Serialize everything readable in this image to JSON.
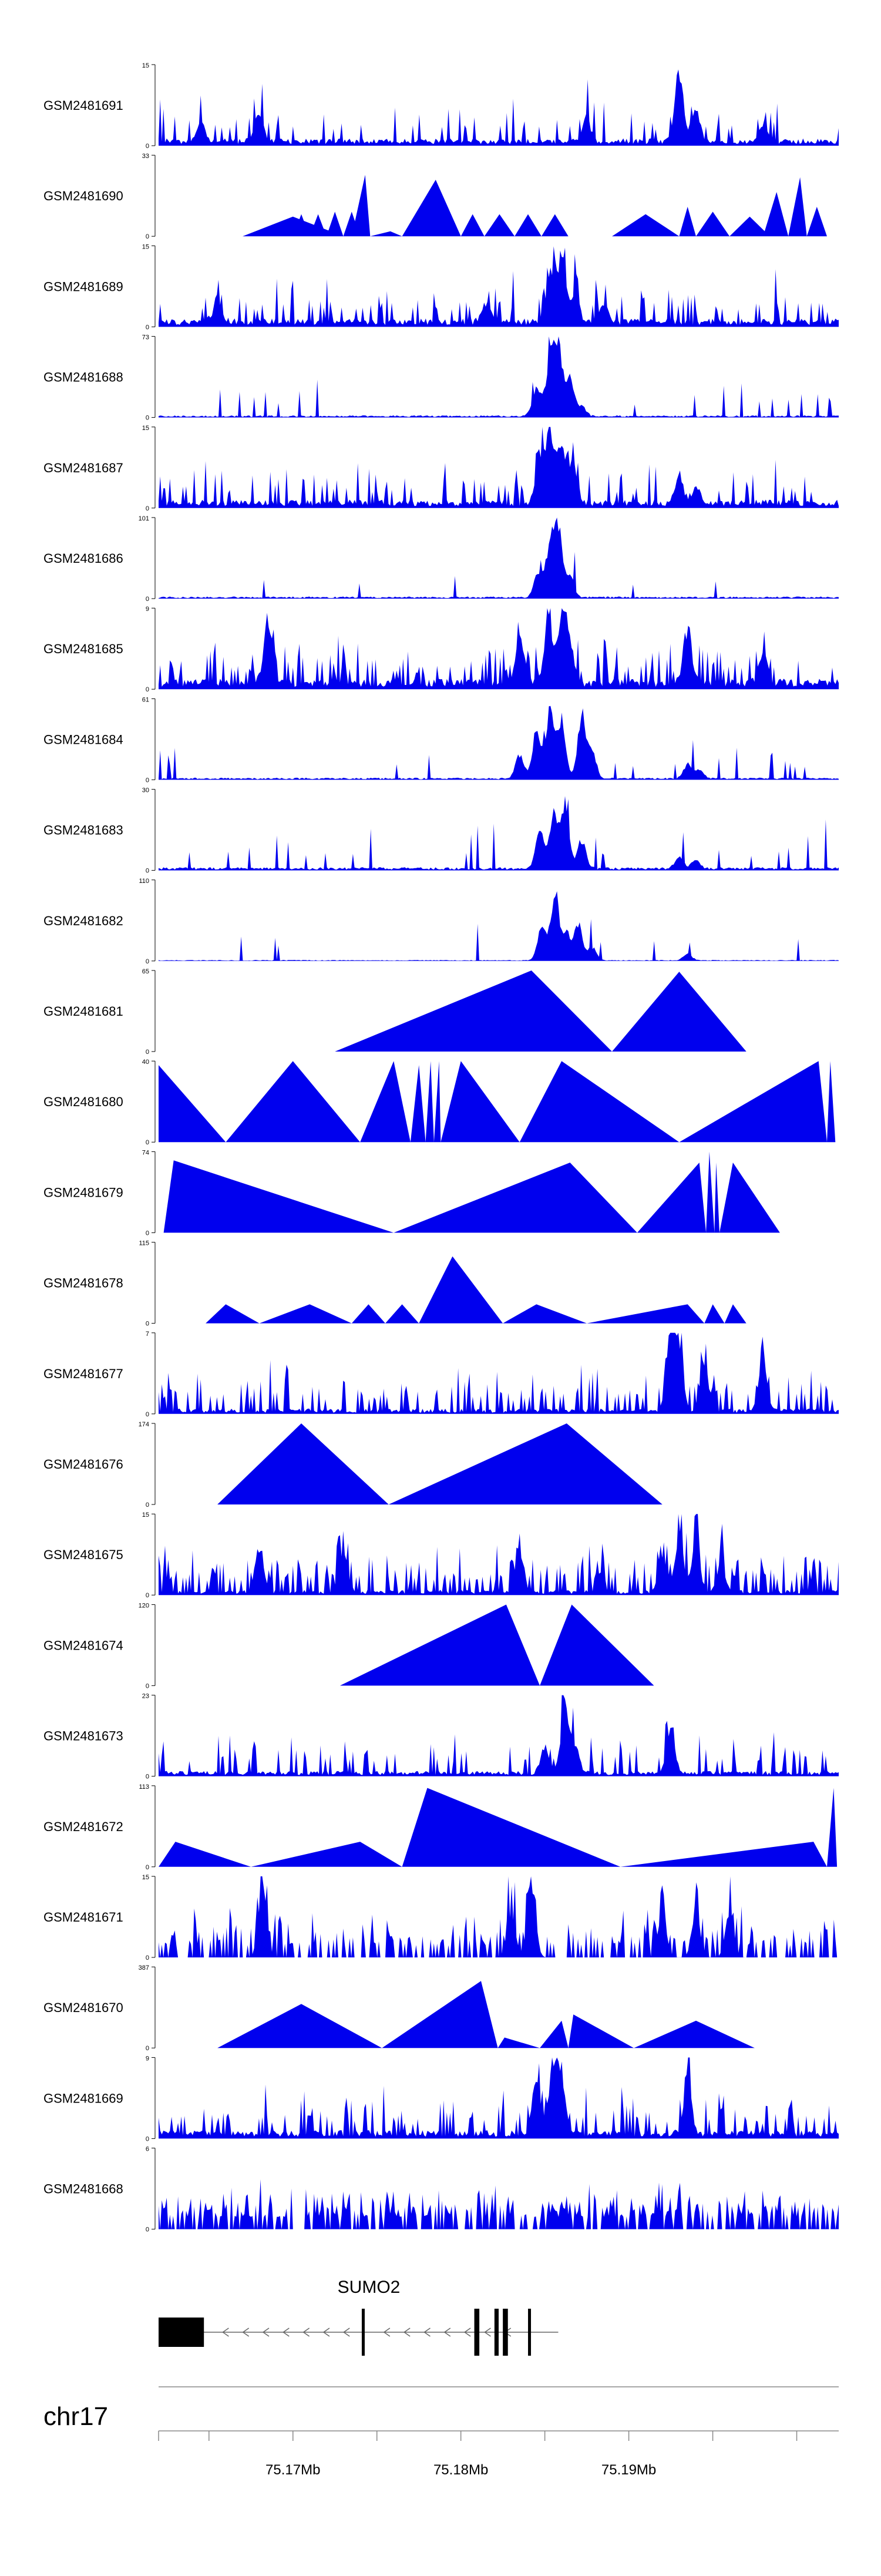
{
  "chart_data": {
    "type": "area",
    "title": "",
    "chromosome": "chr17",
    "x_range_bp": [
      75162000,
      75202500
    ],
    "x_ticks": [
      {
        "pos": 75162000,
        "label": ""
      },
      {
        "pos": 75165000,
        "label": ""
      },
      {
        "pos": 75170000,
        "label": "75.17Mb"
      },
      {
        "pos": 75175000,
        "label": ""
      },
      {
        "pos": 75180000,
        "label": "75.18Mb"
      },
      {
        "pos": 75185000,
        "label": ""
      },
      {
        "pos": 75190000,
        "label": "75.19Mb"
      },
      {
        "pos": 75195000,
        "label": ""
      },
      {
        "pos": 75200000,
        "label": ""
      }
    ],
    "series_color": "#0000ee",
    "tracks": [
      {
        "name": "GSM2481691",
        "ymax": 15,
        "ymin_label": "0",
        "shape": "dense",
        "noise": 0.16,
        "bg": 0.07,
        "seed": 11,
        "peaks": [
          [
            75164500,
            4
          ],
          [
            75168000,
            6
          ],
          [
            75187500,
            5
          ],
          [
            75193000,
            15
          ],
          [
            75194000,
            7
          ],
          [
            75198000,
            4
          ]
        ]
      },
      {
        "name": "GSM2481690",
        "ymax": 33,
        "ymin_label": "0",
        "shape": "sparse",
        "noise": 0.0,
        "bg": 0.0,
        "seed": 12,
        "spikes": [
          [
            75167000,
            75170000,
            75173000,
            8
          ],
          [
            75170000,
            75170500,
            75171000,
            9
          ],
          [
            75171000,
            75171500,
            75172000,
            9
          ],
          [
            75172000,
            75172500,
            75173000,
            10
          ],
          [
            75173000,
            75173500,
            75174000,
            10
          ],
          [
            75173500,
            75174300,
            75174600,
            25
          ],
          [
            75174600,
            75175800,
            75176500,
            2
          ],
          [
            75176500,
            75178500,
            75180000,
            23
          ],
          [
            75180000,
            75180700,
            75181400,
            9
          ],
          [
            75181400,
            75182300,
            75183200,
            9
          ],
          [
            75183200,
            75184000,
            75184800,
            9
          ],
          [
            75184800,
            75185600,
            75186400,
            9
          ],
          [
            75189000,
            75191000,
            75193000,
            9
          ],
          [
            75193000,
            75193500,
            75194000,
            12
          ],
          [
            75194000,
            75195000,
            75196000,
            10
          ],
          [
            75196000,
            75197200,
            75198400,
            8
          ],
          [
            75198000,
            75198800,
            75199500,
            18
          ],
          [
            75199500,
            75200200,
            75200600,
            24
          ],
          [
            75200600,
            75201200,
            75201800,
            12
          ]
        ]
      },
      {
        "name": "GSM2481689",
        "ymax": 15,
        "ymin_label": "0",
        "shape": "dense",
        "noise": 0.2,
        "bg": 0.08,
        "seed": 13,
        "peaks": [
          [
            75165500,
            5
          ],
          [
            75181500,
            4
          ],
          [
            75185300,
            10
          ],
          [
            75186000,
            14
          ],
          [
            75186800,
            6
          ],
          [
            75188500,
            4
          ]
        ]
      },
      {
        "name": "GSM2481688",
        "ymax": 73,
        "ymin_label": "0",
        "shape": "dense",
        "noise": 0.04,
        "bg": 0.02,
        "seed": 14,
        "peaks": [
          [
            75184500,
            30
          ],
          [
            75185300,
            55
          ],
          [
            75185800,
            72
          ],
          [
            75186500,
            40
          ],
          [
            75187200,
            10
          ]
        ]
      },
      {
        "name": "GSM2481687",
        "ymax": 15,
        "ymin_label": "0",
        "shape": "dense",
        "noise": 0.2,
        "bg": 0.08,
        "seed": 15,
        "peaks": [
          [
            75184700,
            9
          ],
          [
            75185300,
            14
          ],
          [
            75186000,
            13
          ],
          [
            75186700,
            8
          ],
          [
            75193000,
            6
          ],
          [
            75194000,
            4
          ]
        ]
      },
      {
        "name": "GSM2481686",
        "ymax": 101,
        "ymin_label": "0",
        "shape": "dense",
        "noise": 0.03,
        "bg": 0.02,
        "seed": 16,
        "peaks": [
          [
            75184600,
            35
          ],
          [
            75185300,
            70
          ],
          [
            75185800,
            95
          ],
          [
            75186500,
            30
          ]
        ]
      },
      {
        "name": "GSM2481685",
        "ymax": 9,
        "ymin_label": "0",
        "shape": "dense",
        "noise": 0.3,
        "bg": 0.1,
        "seed": 17,
        "peaks": [
          [
            75168500,
            8
          ],
          [
            75183500,
            6
          ],
          [
            75185200,
            8
          ],
          [
            75186000,
            9
          ],
          [
            75186500,
            5
          ],
          [
            75193500,
            7
          ],
          [
            75198000,
            4
          ]
        ]
      },
      {
        "name": "GSM2481684",
        "ymax": 61,
        "ymin_label": "0",
        "shape": "dense",
        "noise": 0.04,
        "bg": 0.02,
        "seed": 18,
        "peaks": [
          [
            75183500,
            20
          ],
          [
            75184500,
            40
          ],
          [
            75185300,
            55
          ],
          [
            75186000,
            50
          ],
          [
            75187200,
            52
          ],
          [
            75187800,
            25
          ],
          [
            75193500,
            12
          ],
          [
            75194200,
            7
          ]
        ]
      },
      {
        "name": "GSM2481683",
        "ymax": 30,
        "ymin_label": "0",
        "shape": "dense",
        "noise": 0.06,
        "bg": 0.03,
        "seed": 19,
        "peaks": [
          [
            75184700,
            15
          ],
          [
            75185500,
            22
          ],
          [
            75186200,
            28
          ],
          [
            75187200,
            12
          ],
          [
            75193000,
            5
          ],
          [
            75194000,
            4
          ]
        ]
      },
      {
        "name": "GSM2481682",
        "ymax": 110,
        "ymin_label": "0",
        "shape": "dense",
        "noise": 0.02,
        "bg": 0.01,
        "seed": 20,
        "peaks": [
          [
            75184800,
            50
          ],
          [
            75185600,
            105
          ],
          [
            75186300,
            40
          ],
          [
            75187000,
            55
          ],
          [
            75187800,
            20
          ],
          [
            75193500,
            10
          ]
        ]
      },
      {
        "name": "GSM2481681",
        "ymax": 65,
        "ymin_label": "0",
        "shape": "sparse",
        "noise": 0.0,
        "bg": 0.0,
        "seed": 21,
        "spikes": [
          [
            75172500,
            75184200,
            75189000,
            65
          ],
          [
            75189000,
            75193000,
            75197000,
            64
          ]
        ]
      },
      {
        "name": "GSM2481680",
        "ymax": 40,
        "ymin_label": "0",
        "shape": "sparse",
        "noise": 0.0,
        "bg": 0.0,
        "seed": 22,
        "spikes": [
          [
            75162000,
            75162000,
            75166000,
            38
          ],
          [
            75166000,
            75170000,
            75174000,
            40
          ],
          [
            75174000,
            75176000,
            75177000,
            40
          ],
          [
            75177000,
            75177500,
            75177900,
            38
          ],
          [
            75177900,
            75178200,
            75178400,
            40
          ],
          [
            75178400,
            75178700,
            75178800,
            40
          ],
          [
            75178800,
            75180000,
            75183500,
            40
          ],
          [
            75183500,
            75186000,
            75193000,
            40
          ],
          [
            75193000,
            75201300,
            75201800,
            40
          ],
          [
            75201800,
            75202000,
            75202300,
            40
          ]
        ]
      },
      {
        "name": "GSM2481679",
        "ymax": 74,
        "ymin_label": "0",
        "shape": "sparse",
        "noise": 0.0,
        "bg": 0.0,
        "seed": 23,
        "spikes": [
          [
            75162300,
            75162900,
            75176000,
            66
          ],
          [
            75176000,
            75186500,
            75190500,
            64
          ],
          [
            75190500,
            75194200,
            75194600,
            64
          ],
          [
            75194600,
            75194800,
            75195100,
            74
          ],
          [
            75195100,
            75195200,
            75195400,
            64
          ],
          [
            75195400,
            75196200,
            75199000,
            64
          ]
        ]
      },
      {
        "name": "GSM2481678",
        "ymax": 115,
        "ymin_label": "0",
        "shape": "sparse",
        "noise": 0.0,
        "bg": 0.0,
        "seed": 24,
        "spikes": [
          [
            75164800,
            75166000,
            75168000,
            27
          ],
          [
            75168000,
            75171000,
            75173500,
            27
          ],
          [
            75173500,
            75174500,
            75175500,
            27
          ],
          [
            75175500,
            75176500,
            75177500,
            27
          ],
          [
            75177500,
            75179500,
            75182500,
            95
          ],
          [
            75182500,
            75184500,
            75187500,
            27
          ],
          [
            75187500,
            75193500,
            75194500,
            27
          ],
          [
            75194500,
            75195000,
            75195700,
            27
          ],
          [
            75195700,
            75196200,
            75197000,
            27
          ]
        ]
      },
      {
        "name": "GSM2481677",
        "ymax": 7,
        "ymin_label": "0",
        "shape": "dense",
        "noise": 0.35,
        "bg": 0.05,
        "seed": 25,
        "peaks": [
          [
            75192500,
            7
          ],
          [
            75193000,
            6
          ],
          [
            75194500,
            5
          ],
          [
            75198000,
            5
          ]
        ]
      },
      {
        "name": "GSM2481676",
        "ymax": 174,
        "ymin_label": "0",
        "shape": "sparse",
        "noise": 0.0,
        "bg": 0.0,
        "seed": 26,
        "spikes": [
          [
            75165500,
            75170500,
            75175700,
            174
          ],
          [
            75175700,
            75186300,
            75192000,
            174
          ]
        ]
      },
      {
        "name": "GSM2481675",
        "ymax": 15,
        "ymin_label": "0",
        "shape": "dense",
        "noise": 0.4,
        "bg": 0.05,
        "seed": 27,
        "peaks": [
          [
            75168000,
            10
          ],
          [
            75173000,
            9
          ],
          [
            75183500,
            9
          ],
          [
            75192000,
            8
          ],
          [
            75193000,
            12
          ],
          [
            75194000,
            10
          ],
          [
            75195500,
            6
          ]
        ]
      },
      {
        "name": "GSM2481674",
        "ymax": 120,
        "ymin_label": "0",
        "shape": "sparse",
        "noise": 0.0,
        "bg": 0.0,
        "seed": 28,
        "spikes": [
          [
            75172800,
            75182700,
            75184700,
            120
          ],
          [
            75184700,
            75186600,
            75191500,
            120
          ]
        ]
      },
      {
        "name": "GSM2481673",
        "ymax": 23,
        "ymin_label": "0",
        "shape": "dense",
        "noise": 0.2,
        "bg": 0.05,
        "seed": 29,
        "peaks": [
          [
            75185000,
            8
          ],
          [
            75186200,
            22
          ],
          [
            75186800,
            8
          ],
          [
            75192500,
            14
          ]
        ]
      },
      {
        "name": "GSM2481672",
        "ymax": 113,
        "ymin_label": "0",
        "shape": "sparse",
        "noise": 0.0,
        "bg": 0.0,
        "seed": 30,
        "spikes": [
          [
            75162000,
            75163000,
            75167500,
            35
          ],
          [
            75167500,
            75174000,
            75176500,
            35
          ],
          [
            75176500,
            75178000,
            75189500,
            110
          ],
          [
            75189500,
            75201000,
            75201800,
            35
          ],
          [
            75201800,
            75202200,
            75202400,
            110
          ]
        ]
      },
      {
        "name": "GSM2481671",
        "ymax": 15,
        "ymin_label": "0",
        "shape": "dense",
        "noise": 0.45,
        "bg": 0.0,
        "seed": 31,
        "peaks": [
          [
            75168200,
            15
          ],
          [
            75183000,
            9
          ],
          [
            75184200,
            15
          ],
          [
            75192000,
            10
          ],
          [
            75194000,
            10
          ],
          [
            75196000,
            9
          ]
        ]
      },
      {
        "name": "GSM2481670",
        "ymax": 387,
        "ymin_label": "0",
        "shape": "sparse",
        "noise": 0.0,
        "bg": 0.0,
        "seed": 32,
        "spikes": [
          [
            75165500,
            75170500,
            75175300,
            210
          ],
          [
            75175300,
            75181200,
            75182200,
            320
          ],
          [
            75182200,
            75182600,
            75184700,
            50
          ],
          [
            75184700,
            75186000,
            75186400,
            130
          ],
          [
            75186400,
            75186700,
            75190300,
            160
          ],
          [
            75190300,
            75194000,
            75197500,
            130
          ]
        ]
      },
      {
        "name": "GSM2481669",
        "ymax": 9,
        "ymin_label": "0",
        "shape": "dense",
        "noise": 0.3,
        "bg": 0.08,
        "seed": 33,
        "peaks": [
          [
            75184500,
            7
          ],
          [
            75185500,
            9
          ],
          [
            75186000,
            6
          ],
          [
            75193500,
            7
          ]
        ]
      },
      {
        "name": "GSM2481668",
        "ymax": 6,
        "ymin_label": "0",
        "shape": "dense",
        "noise": 0.6,
        "bg": 0.0,
        "seed": 34,
        "peaks": []
      }
    ],
    "gene": {
      "name": "SUMO2",
      "strand": "-",
      "exons": [
        [
          75162000,
          75164700
        ],
        [
          75174100,
          75174250
        ],
        [
          75180800,
          75181100
        ],
        [
          75182000,
          75182250
        ],
        [
          75182500,
          75182800
        ],
        [
          75184000,
          75184150
        ]
      ],
      "span": [
        75162000,
        75185800
      ]
    }
  }
}
